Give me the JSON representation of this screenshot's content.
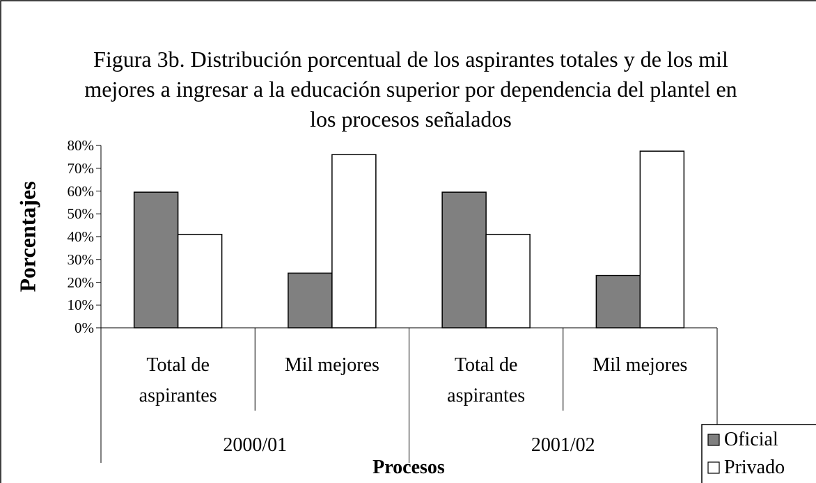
{
  "chart_data": {
    "type": "bar",
    "title": "Figura 3b. Distribución porcentual de los aspirantes totales y de los mil mejores a ingresar a la educación superior por dependencia del plantel en los procesos señalados",
    "categories": [
      "Total de aspirantes",
      "Mil mejores",
      "Total de aspirantes",
      "Mil mejores"
    ],
    "groups": [
      "2000/01",
      "2001/02"
    ],
    "series": [
      {
        "name": "Oficial",
        "color": "#808080",
        "values": [
          59.5,
          24,
          59.5,
          23
        ]
      },
      {
        "name": "Privado",
        "color": "#ffffff",
        "values": [
          41,
          76,
          41,
          77.5
        ]
      }
    ],
    "ylabel": "Porcentajes",
    "xlabel": "Procesos",
    "ylim": [
      0,
      80
    ],
    "yticks": [
      {
        "value": 0,
        "label": "0%"
      },
      {
        "value": 10,
        "label": "10%"
      },
      {
        "value": 20,
        "label": "20%"
      },
      {
        "value": 30,
        "label": "30%"
      },
      {
        "value": 40,
        "label": "40%"
      },
      {
        "value": 50,
        "label": "50%"
      },
      {
        "value": 60,
        "label": "60%"
      },
      {
        "value": 70,
        "label": "70%"
      },
      {
        "value": 80,
        "label": "80%"
      }
    ],
    "legend": "bottom-right"
  }
}
